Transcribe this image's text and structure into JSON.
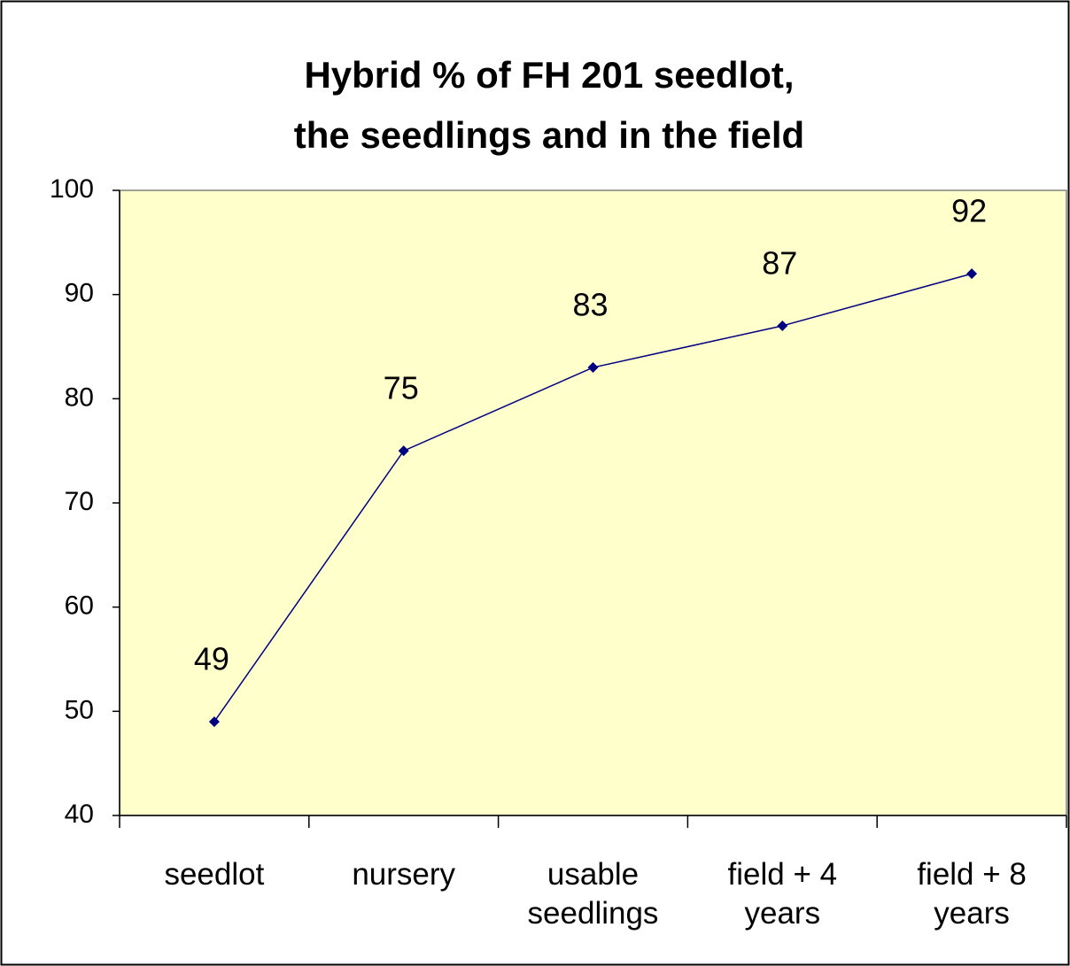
{
  "chart_data": {
    "type": "line",
    "title": [
      "Hybrid % of FH 201 seedlot,",
      "the seedlings and in the field"
    ],
    "categories": [
      "seedlot",
      "nursery",
      "usable seedlings",
      "field + 4 years",
      "field + 8 years"
    ],
    "values": [
      49,
      75,
      83,
      87,
      92
    ],
    "color": "#000080",
    "ylim": [
      40,
      100
    ],
    "yticks": [
      40,
      50,
      60,
      70,
      80,
      90,
      100
    ],
    "grid": false,
    "data_labels": true
  }
}
